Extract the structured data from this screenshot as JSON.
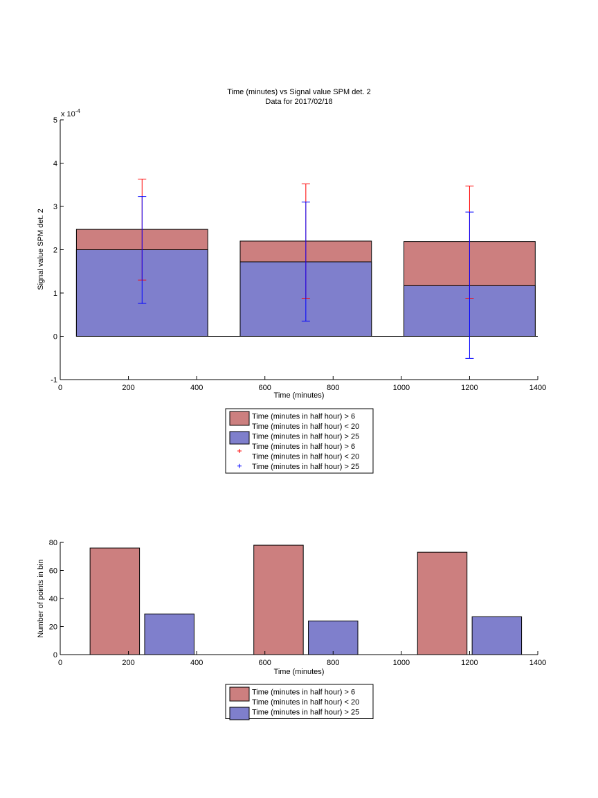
{
  "colors": {
    "red_fill": "#cc7f7f",
    "blue_fill": "#7f7fcc",
    "red_err": "#ff0000",
    "blue_err": "#0000ff",
    "edge": "#000000"
  },
  "chart_data": [
    {
      "type": "bar",
      "title": "Time (minutes) vs Signal value SPM det. 2",
      "subtitle": "Data for 2017/02/18",
      "xlabel": "Time (minutes)",
      "ylabel": "Signal value SPM det. 2",
      "y_exponent_label": "x 10",
      "y_exponent": "-4",
      "xlim": [
        0,
        1400
      ],
      "ylim": [
        -1,
        5
      ],
      "x_ticks": [
        0,
        200,
        400,
        600,
        800,
        1000,
        1200,
        1400
      ],
      "y_ticks": [
        -1,
        0,
        1,
        2,
        3,
        4,
        5
      ],
      "bar_width": 385,
      "bars_overlaid": true,
      "x": [
        240,
        720,
        1200
      ],
      "series": [
        {
          "name": "Time (minutes in half hour) > 6\nTime (minutes in half hour) < 20",
          "values": [
            2.47,
            2.2,
            2.19
          ],
          "color": "red"
        },
        {
          "name": "Time (minutes in half hour) > 25",
          "values": [
            2.0,
            1.72,
            1.17
          ],
          "color": "blue"
        }
      ],
      "error_bars": [
        {
          "name": "Time (minutes in half hour) > 6\nTime (minutes in half hour) < 20",
          "color": "red",
          "low": [
            1.3,
            0.88,
            0.88
          ],
          "high": [
            3.63,
            3.52,
            3.47
          ]
        },
        {
          "name": "Time (minutes in half hour) > 25",
          "color": "blue",
          "low": [
            0.76,
            0.35,
            -0.51
          ],
          "high": [
            3.23,
            3.1,
            2.87
          ]
        }
      ],
      "legend": {
        "placement": "below",
        "entries": [
          {
            "kind": "patch",
            "color": "red",
            "lines": [
              "Time (minutes in half hour) > 6",
              "Time (minutes in half hour) < 20"
            ]
          },
          {
            "kind": "patch",
            "color": "blue",
            "lines": [
              "Time (minutes in half hour) > 25"
            ]
          },
          {
            "kind": "marker",
            "color": "red",
            "lines": [
              "Time (minutes in half hour) > 6",
              "Time (minutes in half hour) < 20"
            ]
          },
          {
            "kind": "marker",
            "color": "blue",
            "lines": [
              "Time (minutes in half hour) > 25"
            ]
          }
        ]
      }
    },
    {
      "type": "bar",
      "xlabel": "Time (minutes)",
      "ylabel": "Number of points in bin",
      "xlim": [
        0,
        1400
      ],
      "ylim": [
        0,
        80
      ],
      "x_ticks": [
        0,
        200,
        400,
        600,
        800,
        1000,
        1200,
        1400
      ],
      "y_ticks": [
        0,
        20,
        40,
        60,
        80
      ],
      "bar_width": 145,
      "series": [
        {
          "name": "Time (minutes in half hour) > 6\nTime (minutes in half hour) < 20",
          "x": [
            160,
            640,
            1120
          ],
          "values": [
            76,
            78,
            73
          ],
          "color": "red"
        },
        {
          "name": "Time (minutes in half hour) > 25",
          "x": [
            320,
            800,
            1280
          ],
          "values": [
            29,
            24,
            27
          ],
          "color": "blue"
        }
      ],
      "legend": {
        "placement": "below",
        "entries": [
          {
            "kind": "patch",
            "color": "red",
            "lines": [
              "Time (minutes in half hour) > 6",
              "Time (minutes in half hour) < 20"
            ]
          },
          {
            "kind": "patch",
            "color": "blue",
            "lines": [
              "Time (minutes in half hour) > 25"
            ]
          }
        ]
      }
    }
  ]
}
